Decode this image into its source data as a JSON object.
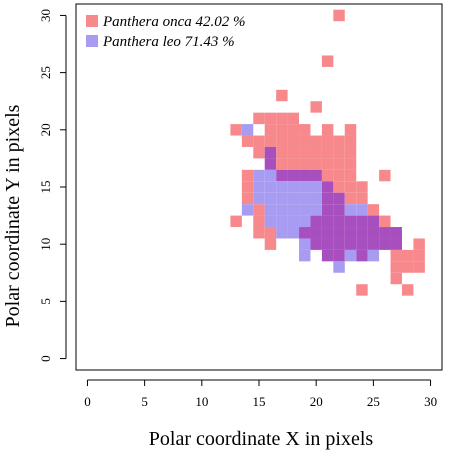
{
  "chart_data": {
    "type": "heatmap",
    "xlabel": "Polar coordinate X in pixels",
    "ylabel": "Polar coordinate Y in pixels",
    "xlim": [
      -1,
      31
    ],
    "ylim": [
      -1,
      31
    ],
    "x_ticks": [
      0,
      5,
      10,
      15,
      20,
      25,
      30
    ],
    "y_ticks": [
      0,
      5,
      10,
      15,
      20,
      25,
      30
    ],
    "x_tick_labels": [
      "0",
      "5",
      "10",
      "15",
      "20",
      "25",
      "30"
    ],
    "y_tick_labels": [
      "0",
      "5",
      "10",
      "15",
      "20",
      "25",
      "30"
    ],
    "grid": false,
    "legend_position": "top-left",
    "overlap_color": "#a84fbf",
    "series": [
      {
        "name": "Panthera onca",
        "legend_label": "Panthera onca 42.02 %",
        "color": "#f7898d",
        "cells": [
          [
            22,
            30
          ],
          [
            21,
            26
          ],
          [
            17,
            23
          ],
          [
            20,
            22
          ],
          [
            15,
            21
          ],
          [
            16,
            21
          ],
          [
            17,
            21
          ],
          [
            18,
            21
          ],
          [
            13,
            20
          ],
          [
            16,
            20
          ],
          [
            17,
            20
          ],
          [
            18,
            20
          ],
          [
            19,
            20
          ],
          [
            21,
            20
          ],
          [
            23,
            20
          ],
          [
            14,
            19
          ],
          [
            15,
            19
          ],
          [
            16,
            19
          ],
          [
            17,
            19
          ],
          [
            18,
            19
          ],
          [
            19,
            19
          ],
          [
            20,
            19
          ],
          [
            21,
            19
          ],
          [
            22,
            19
          ],
          [
            23,
            19
          ],
          [
            15,
            18
          ],
          [
            16,
            18
          ],
          [
            17,
            18
          ],
          [
            18,
            18
          ],
          [
            19,
            18
          ],
          [
            20,
            18
          ],
          [
            21,
            18
          ],
          [
            22,
            18
          ],
          [
            23,
            18
          ],
          [
            16,
            17
          ],
          [
            17,
            17
          ],
          [
            18,
            17
          ],
          [
            19,
            17
          ],
          [
            20,
            17
          ],
          [
            21,
            17
          ],
          [
            22,
            17
          ],
          [
            23,
            17
          ],
          [
            14,
            16
          ],
          [
            17,
            16
          ],
          [
            18,
            16
          ],
          [
            19,
            16
          ],
          [
            20,
            16
          ],
          [
            21,
            16
          ],
          [
            22,
            16
          ],
          [
            23,
            16
          ],
          [
            26,
            16
          ],
          [
            14,
            15
          ],
          [
            21,
            15
          ],
          [
            22,
            15
          ],
          [
            23,
            15
          ],
          [
            24,
            15
          ],
          [
            14,
            14
          ],
          [
            21,
            14
          ],
          [
            22,
            14
          ],
          [
            23,
            14
          ],
          [
            24,
            14
          ],
          [
            15,
            13
          ],
          [
            21,
            13
          ],
          [
            22,
            13
          ],
          [
            25,
            13
          ],
          [
            13,
            12
          ],
          [
            15,
            12
          ],
          [
            20,
            12
          ],
          [
            21,
            12
          ],
          [
            22,
            12
          ],
          [
            23,
            12
          ],
          [
            24,
            12
          ],
          [
            25,
            12
          ],
          [
            26,
            12
          ],
          [
            15,
            11
          ],
          [
            16,
            11
          ],
          [
            19,
            11
          ],
          [
            20,
            11
          ],
          [
            21,
            11
          ],
          [
            22,
            11
          ],
          [
            23,
            11
          ],
          [
            24,
            11
          ],
          [
            25,
            11
          ],
          [
            26,
            11
          ],
          [
            27,
            11
          ],
          [
            16,
            10
          ],
          [
            20,
            10
          ],
          [
            21,
            10
          ],
          [
            22,
            10
          ],
          [
            23,
            10
          ],
          [
            24,
            10
          ],
          [
            25,
            10
          ],
          [
            26,
            10
          ],
          [
            27,
            10
          ],
          [
            29,
            10
          ],
          [
            21,
            9
          ],
          [
            22,
            9
          ],
          [
            24,
            9
          ],
          [
            27,
            9
          ],
          [
            28,
            9
          ],
          [
            29,
            9
          ],
          [
            27,
            8
          ],
          [
            28,
            8
          ],
          [
            29,
            8
          ],
          [
            27,
            7
          ],
          [
            24,
            6
          ],
          [
            28,
            6
          ]
        ]
      },
      {
        "name": "Panthera leo",
        "legend_label": "Panthera leo 71.43 %",
        "color": "#a79cf2",
        "cells": [
          [
            14,
            20
          ],
          [
            16,
            18
          ],
          [
            16,
            17
          ],
          [
            15,
            16
          ],
          [
            16,
            16
          ],
          [
            17,
            16
          ],
          [
            18,
            16
          ],
          [
            19,
            16
          ],
          [
            20,
            16
          ],
          [
            15,
            15
          ],
          [
            16,
            15
          ],
          [
            17,
            15
          ],
          [
            18,
            15
          ],
          [
            19,
            15
          ],
          [
            20,
            15
          ],
          [
            21,
            15
          ],
          [
            15,
            14
          ],
          [
            16,
            14
          ],
          [
            17,
            14
          ],
          [
            18,
            14
          ],
          [
            19,
            14
          ],
          [
            20,
            14
          ],
          [
            21,
            14
          ],
          [
            22,
            14
          ],
          [
            14,
            13
          ],
          [
            16,
            13
          ],
          [
            17,
            13
          ],
          [
            18,
            13
          ],
          [
            19,
            13
          ],
          [
            20,
            13
          ],
          [
            21,
            13
          ],
          [
            22,
            13
          ],
          [
            23,
            13
          ],
          [
            24,
            13
          ],
          [
            16,
            12
          ],
          [
            17,
            12
          ],
          [
            18,
            12
          ],
          [
            19,
            12
          ],
          [
            20,
            12
          ],
          [
            21,
            12
          ],
          [
            22,
            12
          ],
          [
            23,
            12
          ],
          [
            24,
            12
          ],
          [
            25,
            12
          ],
          [
            17,
            11
          ],
          [
            18,
            11
          ],
          [
            19,
            11
          ],
          [
            20,
            11
          ],
          [
            21,
            11
          ],
          [
            22,
            11
          ],
          [
            23,
            11
          ],
          [
            24,
            11
          ],
          [
            25,
            11
          ],
          [
            26,
            11
          ],
          [
            27,
            11
          ],
          [
            19,
            10
          ],
          [
            20,
            10
          ],
          [
            21,
            10
          ],
          [
            22,
            10
          ],
          [
            23,
            10
          ],
          [
            24,
            10
          ],
          [
            25,
            10
          ],
          [
            26,
            10
          ],
          [
            27,
            10
          ],
          [
            19,
            9
          ],
          [
            21,
            9
          ],
          [
            22,
            9
          ],
          [
            23,
            9
          ],
          [
            24,
            9
          ],
          [
            25,
            9
          ],
          [
            22,
            8
          ]
        ]
      }
    ]
  }
}
